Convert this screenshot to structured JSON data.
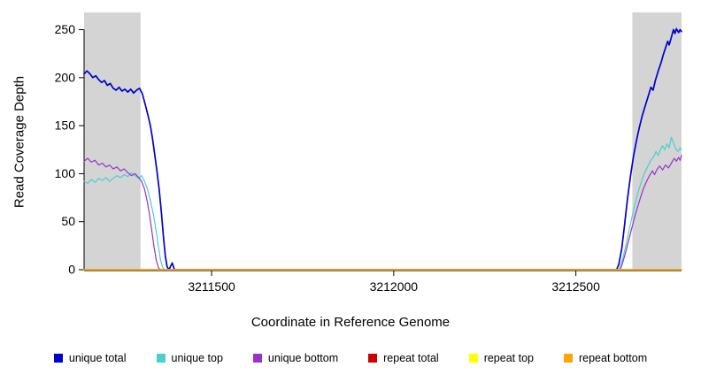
{
  "chart_data": {
    "type": "line",
    "title": "",
    "xlabel": "Coordinate in Reference Genome",
    "ylabel": "Read Coverage Depth",
    "xlim": [
      3211150,
      3212790
    ],
    "ylim": [
      0,
      268
    ],
    "x_ticks": [
      3211500,
      3212000,
      3212500
    ],
    "y_ticks": [
      0,
      50,
      100,
      150,
      200,
      250
    ],
    "grid": false,
    "legend_position": "bottom",
    "background": "#ffffff",
    "shaded_region_color": "#d4d4d4",
    "shaded_regions": [
      {
        "x0": 3211150,
        "x1": 3211305
      },
      {
        "x0": 3212655,
        "x1": 3212790
      }
    ],
    "series": [
      {
        "name": "unique total",
        "color": "#0000cd",
        "width": 1.7,
        "points": [
          [
            3211150,
            204
          ],
          [
            3211158,
            207
          ],
          [
            3211166,
            204
          ],
          [
            3211174,
            200
          ],
          [
            3211182,
            202
          ],
          [
            3211190,
            198
          ],
          [
            3211198,
            195
          ],
          [
            3211206,
            197
          ],
          [
            3211214,
            192
          ],
          [
            3211222,
            194
          ],
          [
            3211230,
            189
          ],
          [
            3211238,
            187
          ],
          [
            3211246,
            190
          ],
          [
            3211254,
            186
          ],
          [
            3211262,
            188
          ],
          [
            3211270,
            185
          ],
          [
            3211278,
            188
          ],
          [
            3211286,
            184
          ],
          [
            3211294,
            187
          ],
          [
            3211302,
            189
          ],
          [
            3211310,
            183
          ],
          [
            3211318,
            172
          ],
          [
            3211326,
            160
          ],
          [
            3211332,
            150
          ],
          [
            3211338,
            136
          ],
          [
            3211344,
            120
          ],
          [
            3211350,
            103
          ],
          [
            3211356,
            84
          ],
          [
            3211362,
            60
          ],
          [
            3211368,
            34
          ],
          [
            3211373,
            14
          ],
          [
            3211378,
            3
          ],
          [
            3211383,
            0
          ],
          [
            3211392,
            7
          ],
          [
            3211398,
            0
          ],
          [
            3211420,
            0
          ],
          [
            3212600,
            0
          ],
          [
            3212612,
            0
          ],
          [
            3212618,
            6
          ],
          [
            3212626,
            22
          ],
          [
            3212634,
            48
          ],
          [
            3212642,
            75
          ],
          [
            3212650,
            98
          ],
          [
            3212658,
            118
          ],
          [
            3212666,
            134
          ],
          [
            3212674,
            148
          ],
          [
            3212682,
            160
          ],
          [
            3212690,
            170
          ],
          [
            3212698,
            180
          ],
          [
            3212706,
            190
          ],
          [
            3212712,
            187
          ],
          [
            3212718,
            197
          ],
          [
            3212726,
            207
          ],
          [
            3212734,
            216
          ],
          [
            3212740,
            224
          ],
          [
            3212746,
            231
          ],
          [
            3212752,
            238
          ],
          [
            3212756,
            234
          ],
          [
            3212762,
            242
          ],
          [
            3212768,
            250
          ],
          [
            3212772,
            246
          ],
          [
            3212776,
            251
          ],
          [
            3212782,
            247
          ],
          [
            3212786,
            250
          ],
          [
            3212790,
            248
          ]
        ]
      },
      {
        "name": "unique top",
        "color": "#48d1cc",
        "width": 1.2,
        "points": [
          [
            3211150,
            92
          ],
          [
            3211160,
            90
          ],
          [
            3211170,
            94
          ],
          [
            3211180,
            91
          ],
          [
            3211190,
            95
          ],
          [
            3211200,
            93
          ],
          [
            3211210,
            96
          ],
          [
            3211220,
            92
          ],
          [
            3211230,
            95
          ],
          [
            3211240,
            98
          ],
          [
            3211250,
            96
          ],
          [
            3211260,
            99
          ],
          [
            3211270,
            97
          ],
          [
            3211280,
            101
          ],
          [
            3211290,
            98
          ],
          [
            3211300,
            95
          ],
          [
            3211308,
            98
          ],
          [
            3211316,
            92
          ],
          [
            3211324,
            84
          ],
          [
            3211332,
            72
          ],
          [
            3211340,
            58
          ],
          [
            3211348,
            40
          ],
          [
            3211354,
            24
          ],
          [
            3211360,
            10
          ],
          [
            3211366,
            2
          ],
          [
            3211372,
            0
          ],
          [
            3211400,
            0
          ],
          [
            3212605,
            0
          ],
          [
            3212618,
            0
          ],
          [
            3212626,
            8
          ],
          [
            3212634,
            20
          ],
          [
            3212642,
            34
          ],
          [
            3212650,
            48
          ],
          [
            3212658,
            62
          ],
          [
            3212666,
            74
          ],
          [
            3212674,
            85
          ],
          [
            3212682,
            94
          ],
          [
            3212690,
            102
          ],
          [
            3212698,
            108
          ],
          [
            3212706,
            114
          ],
          [
            3212714,
            118
          ],
          [
            3212720,
            123
          ],
          [
            3212726,
            119
          ],
          [
            3212732,
            125
          ],
          [
            3212738,
            129
          ],
          [
            3212744,
            125
          ],
          [
            3212750,
            131
          ],
          [
            3212756,
            127
          ],
          [
            3212762,
            138
          ],
          [
            3212768,
            132
          ],
          [
            3212774,
            126
          ],
          [
            3212780,
            123
          ],
          [
            3212786,
            127
          ],
          [
            3212790,
            125
          ]
        ]
      },
      {
        "name": "unique bottom",
        "color": "#9932cc",
        "width": 1.2,
        "points": [
          [
            3211150,
            113
          ],
          [
            3211160,
            116
          ],
          [
            3211170,
            112
          ],
          [
            3211180,
            114
          ],
          [
            3211190,
            109
          ],
          [
            3211200,
            111
          ],
          [
            3211210,
            107
          ],
          [
            3211220,
            109
          ],
          [
            3211230,
            105
          ],
          [
            3211240,
            107
          ],
          [
            3211250,
            103
          ],
          [
            3211260,
            105
          ],
          [
            3211270,
            101
          ],
          [
            3211280,
            98
          ],
          [
            3211290,
            100
          ],
          [
            3211300,
            96
          ],
          [
            3211308,
            92
          ],
          [
            3211316,
            84
          ],
          [
            3211324,
            70
          ],
          [
            3211330,
            56
          ],
          [
            3211336,
            40
          ],
          [
            3211342,
            24
          ],
          [
            3211348,
            10
          ],
          [
            3211354,
            2
          ],
          [
            3211360,
            0
          ],
          [
            3211390,
            0
          ],
          [
            3212610,
            0
          ],
          [
            3212622,
            0
          ],
          [
            3212630,
            9
          ],
          [
            3212638,
            20
          ],
          [
            3212646,
            32
          ],
          [
            3212654,
            44
          ],
          [
            3212662,
            56
          ],
          [
            3212670,
            66
          ],
          [
            3212678,
            76
          ],
          [
            3212686,
            85
          ],
          [
            3212694,
            92
          ],
          [
            3212702,
            98
          ],
          [
            3212710,
            103
          ],
          [
            3212716,
            99
          ],
          [
            3212722,
            104
          ],
          [
            3212730,
            108
          ],
          [
            3212738,
            104
          ],
          [
            3212746,
            109
          ],
          [
            3212754,
            106
          ],
          [
            3212762,
            111
          ],
          [
            3212770,
            116
          ],
          [
            3212776,
            113
          ],
          [
            3212782,
            117
          ],
          [
            3212786,
            114
          ],
          [
            3212790,
            119
          ]
        ]
      },
      {
        "name": "repeat total",
        "color": "#cd0000",
        "width": 1.2,
        "points": [
          [
            3211150,
            0
          ],
          [
            3212790,
            0
          ]
        ]
      },
      {
        "name": "repeat top",
        "color": "#ffff00",
        "width": 1.2,
        "points": [
          [
            3211150,
            0
          ],
          [
            3212790,
            0
          ]
        ]
      },
      {
        "name": "repeat bottom",
        "color": "#ffa500",
        "width": 1.4,
        "points": [
          [
            3211150,
            0
          ],
          [
            3212790,
            0
          ]
        ]
      }
    ]
  }
}
